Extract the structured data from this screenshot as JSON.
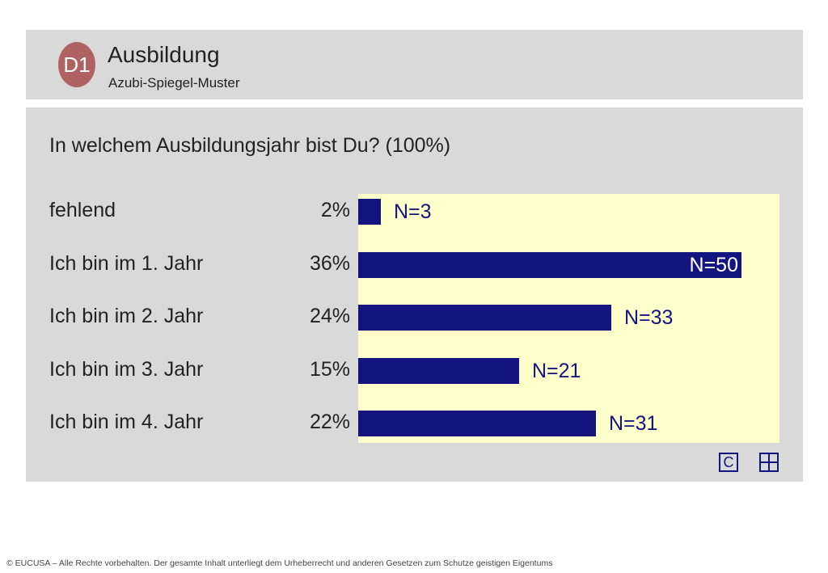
{
  "header": {
    "badge": "D1",
    "title": "Ausbildung",
    "subtitle": "Azubi-Spiegel-Muster"
  },
  "colors": {
    "bar": "#141480",
    "plot_background": "#ffffcc",
    "panel_background": "#d9d9d9",
    "badge": "#b06262"
  },
  "icons": {
    "copy": "C",
    "grid": "grid-icon"
  },
  "chart_data": {
    "type": "bar",
    "orientation": "horizontal",
    "title": "In welchem Ausbildungsjahr bist Du? (100%)",
    "categories": [
      "fehlend",
      "Ich bin im 1. Jahr",
      "Ich bin im 2. Jahr",
      "Ich bin im 3. Jahr",
      "Ich bin im 4. Jahr"
    ],
    "percent_labels": [
      "2%",
      "36%",
      "24%",
      "15%",
      "22%"
    ],
    "values": [
      3,
      50,
      33,
      21,
      31
    ],
    "n_labels": [
      "N=3",
      "N=50",
      "N=33",
      "N=21",
      "N=31"
    ],
    "xlim": [
      0,
      55
    ]
  },
  "footer": {
    "text": "© EUCUSA – Alle Rechte vorbehalten. Der gesamte Inhalt unterliegt dem Urheberrecht und anderen Gesetzen zum Schutze geistigen Eigentums"
  }
}
